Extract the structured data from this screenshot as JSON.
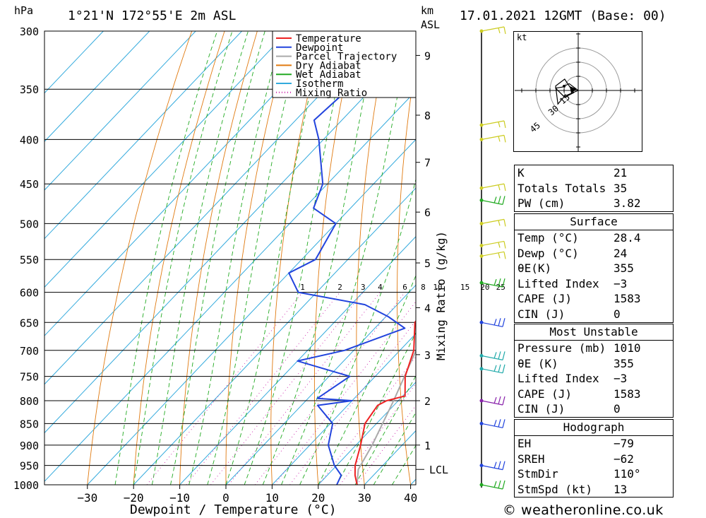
{
  "header": {
    "pressure_unit": "hPa",
    "location": "1°21'N  172°55'E  2m  ASL",
    "height_unit_line1": "km",
    "height_unit_line2": "ASL",
    "datetime": "17.01.2021  12GMT  (Base: 00)"
  },
  "chart_data": {
    "type": "skew-t log-p",
    "xlabel": "Dewpoint / Temperature (°C)",
    "ylabel": "hPa",
    "mixing_ratio_label": "Mixing Ratio (g/kg)",
    "x_ticks": [
      -30,
      -20,
      -10,
      0,
      10,
      20,
      30,
      40
    ],
    "x_tick_labels": [
      "−30",
      "−20",
      "−10",
      "0",
      "10",
      "20",
      "30",
      "40"
    ],
    "pressure_levels": [
      300,
      350,
      400,
      450,
      500,
      550,
      600,
      650,
      700,
      750,
      800,
      850,
      900,
      950,
      1000
    ],
    "km_ticks": [
      {
        "km": 1,
        "p": 900
      },
      {
        "km": 2,
        "p": 800
      },
      {
        "km": 3,
        "p": 708
      },
      {
        "km": 4,
        "p": 625
      },
      {
        "km": 5,
        "p": 555
      },
      {
        "km": 6,
        "p": 485
      },
      {
        "km": 7,
        "p": 425
      },
      {
        "km": 8,
        "p": 375
      },
      {
        "km": 9,
        "p": 320
      }
    ],
    "lcl_label": "LCL",
    "lcl_pressure": 960,
    "mixing_ratio_values": [
      1,
      2,
      3,
      4,
      6,
      8,
      10,
      15,
      20,
      25
    ],
    "legend": [
      {
        "name": "Temperature",
        "color": "#ee2222"
      },
      {
        "name": "Dewpoint",
        "color": "#2244dd"
      },
      {
        "name": "Parcel Trajectory",
        "color": "#aaaaaa"
      },
      {
        "name": "Dry Adiabat",
        "color": "#e07a10"
      },
      {
        "name": "Wet Adiabat",
        "color": "#22aa22"
      },
      {
        "name": "Isotherm",
        "color": "#33aadd"
      },
      {
        "name": "Mixing Ratio",
        "color": "#cc22aa"
      }
    ],
    "temperature": [
      {
        "p": 1000,
        "t": 28.4
      },
      {
        "p": 975,
        "t": 26.0
      },
      {
        "p": 950,
        "t": 24.0
      },
      {
        "p": 900,
        "t": 21.0
      },
      {
        "p": 850,
        "t": 17.5
      },
      {
        "p": 810,
        "t": 16.5
      },
      {
        "p": 800,
        "t": 17.5
      },
      {
        "p": 790,
        "t": 20.5
      },
      {
        "p": 750,
        "t": 16.5
      },
      {
        "p": 700,
        "t": 13.0
      },
      {
        "p": 650,
        "t": 7.5
      },
      {
        "p": 620,
        "t": 6.5
      },
      {
        "p": 600,
        "t": 7.0
      },
      {
        "p": 550,
        "t": 2.5
      },
      {
        "p": 500,
        "t": -2.5
      },
      {
        "p": 450,
        "t": -8.0
      },
      {
        "p": 400,
        "t": -15.5
      },
      {
        "p": 375,
        "t": -20.5
      },
      {
        "p": 360,
        "t": -22.0
      }
    ],
    "dewpoint": [
      {
        "p": 1000,
        "t": 24.0
      },
      {
        "p": 975,
        "t": 23.0
      },
      {
        "p": 950,
        "t": 19.5
      },
      {
        "p": 900,
        "t": 14.0
      },
      {
        "p": 850,
        "t": 10.5
      },
      {
        "p": 810,
        "t": 3.5
      },
      {
        "p": 800,
        "t": 10.0
      },
      {
        "p": 795,
        "t": 2.0
      },
      {
        "p": 750,
        "t": 4.5
      },
      {
        "p": 720,
        "t": -10.0
      },
      {
        "p": 700,
        "t": -2.0
      },
      {
        "p": 660,
        "t": 6.5
      },
      {
        "p": 640,
        "t": 0.5
      },
      {
        "p": 620,
        "t": -7.0
      },
      {
        "p": 600,
        "t": -24.0
      },
      {
        "p": 570,
        "t": -30.0
      },
      {
        "p": 550,
        "t": -27.0
      },
      {
        "p": 500,
        "t": -30.0
      },
      {
        "p": 480,
        "t": -38.0
      },
      {
        "p": 450,
        "t": -41.0
      },
      {
        "p": 400,
        "t": -51.0
      },
      {
        "p": 380,
        "t": -56.0
      },
      {
        "p": 350,
        "t": -55.0
      },
      {
        "p": 320,
        "t": -39.0
      },
      {
        "p": 318,
        "t": -70.0
      },
      {
        "p": 300,
        "t": -62.0
      }
    ],
    "parcel": [
      {
        "p": 1000,
        "t": 28.4
      },
      {
        "p": 960,
        "t": 25.5
      },
      {
        "p": 900,
        "t": 23.5
      },
      {
        "p": 800,
        "t": 19.0
      },
      {
        "p": 700,
        "t": 13.5
      },
      {
        "p": 600,
        "t": 6.5
      },
      {
        "p": 500,
        "t": -1.5
      },
      {
        "p": 450,
        "t": -6.5
      },
      {
        "p": 400,
        "t": -12.5
      },
      {
        "p": 375,
        "t": -16.5
      },
      {
        "p": 360,
        "t": -19.0
      }
    ],
    "wind_levels": [
      {
        "p": 1000,
        "color": "#22aa22"
      },
      {
        "p": 950,
        "color": "#2244dd"
      },
      {
        "p": 850,
        "color": "#2244dd"
      },
      {
        "p": 800,
        "color": "#8822aa"
      },
      {
        "p": 735,
        "color": "#22aaaa"
      },
      {
        "p": 710,
        "color": "#22aaaa"
      },
      {
        "p": 650,
        "color": "#2244dd"
      },
      {
        "p": 585,
        "color": "#22aa22"
      },
      {
        "p": 545,
        "color": "#cccc22"
      },
      {
        "p": 530,
        "color": "#cccc22"
      },
      {
        "p": 500,
        "color": "#cccc22"
      },
      {
        "p": 470,
        "color": "#22aa22"
      },
      {
        "p": 455,
        "color": "#cccc22"
      },
      {
        "p": 400,
        "color": "#cccc22"
      },
      {
        "p": 385,
        "color": "#cccc22"
      },
      {
        "p": 300,
        "color": "#cccc22"
      }
    ]
  },
  "indices_table": {
    "rows": [
      {
        "label": "K",
        "value": "21"
      },
      {
        "label": "Totals Totals",
        "value": "35"
      },
      {
        "label": "PW (cm)",
        "value": "3.82"
      }
    ]
  },
  "surface_table": {
    "title": "Surface",
    "rows": [
      {
        "label": "Temp (°C)",
        "value": "28.4"
      },
      {
        "label": "Dewp (°C)",
        "value": "24"
      },
      {
        "label": "θE(K)",
        "value": "355"
      },
      {
        "label": "Lifted Index",
        "value": "−3"
      },
      {
        "label": "CAPE (J)",
        "value": "1583"
      },
      {
        "label": "CIN (J)",
        "value": "0"
      }
    ]
  },
  "unstable_table": {
    "title": "Most Unstable",
    "rows": [
      {
        "label": "Pressure (mb)",
        "value": "1010"
      },
      {
        "label": "θE (K)",
        "value": "355"
      },
      {
        "label": "Lifted Index",
        "value": "−3"
      },
      {
        "label": "CAPE (J)",
        "value": "1583"
      },
      {
        "label": "CIN (J)",
        "value": "0"
      }
    ]
  },
  "hodograph_table": {
    "title": "Hodograph",
    "rows": [
      {
        "label": "EH",
        "value": "−79"
      },
      {
        "label": "SREH",
        "value": "−62"
      },
      {
        "label": "StmDir",
        "value": "110°"
      },
      {
        "label": "StmSpd (kt)",
        "value": "13"
      }
    ]
  },
  "hodograph": {
    "unit": "kt",
    "ring_labels": [
      "15",
      "30",
      "45"
    ],
    "trace": [
      [
        0,
        0
      ],
      [
        -8,
        -6
      ],
      [
        -14,
        -3
      ],
      [
        -20,
        -2
      ],
      [
        -12,
        6
      ],
      [
        -4,
        2
      ],
      [
        -12,
        -10
      ],
      [
        -20,
        -4
      ],
      [
        -18,
        12
      ],
      [
        -12,
        5
      ],
      [
        0,
        0
      ]
    ]
  },
  "footer": "© weatheronline.co.uk"
}
